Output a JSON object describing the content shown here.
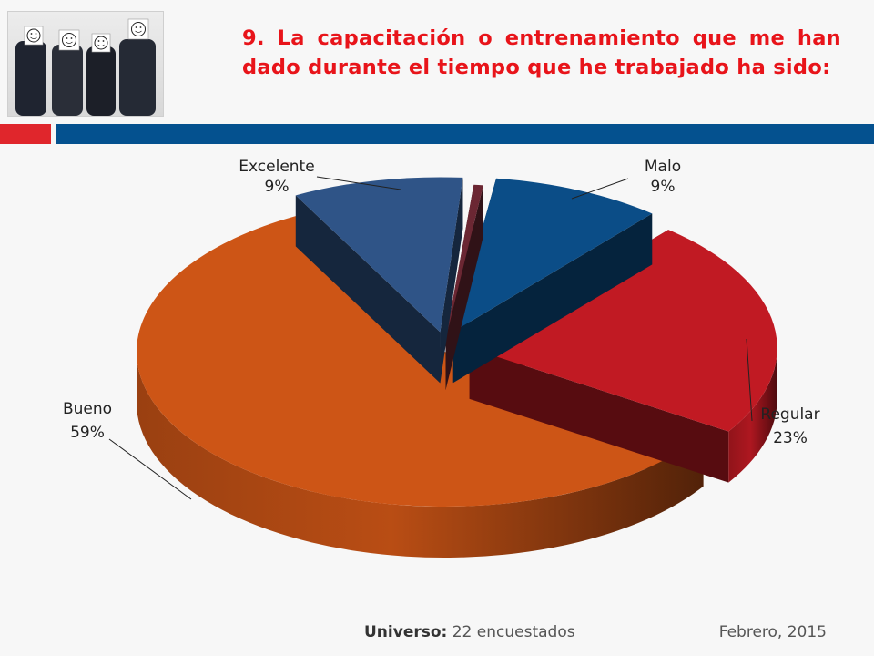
{
  "slide": {
    "title": "9. La capacitación o entrenamiento que me han dado durante el tiempo que he trabajado ha sido:",
    "footer": {
      "universe_label": "Universo:",
      "universe_value": "22 encuestados",
      "date": "Febrero, 2015"
    },
    "photo_icon": "smiley-face-icon"
  },
  "chart_data": {
    "type": "pie",
    "exploded": true,
    "three_d": true,
    "slices": [
      {
        "name": "Excelente",
        "value": 9,
        "label": "9%",
        "color": "#2f5487"
      },
      {
        "name": "Malo",
        "value": 9,
        "label": "9%",
        "color": "#0b4d87"
      },
      {
        "name": "Regular",
        "value": 23,
        "label": "23%",
        "color": "#c11a23"
      },
      {
        "name": "Bueno",
        "value": 59,
        "label": "59%",
        "color": "#cd5516"
      },
      {
        "name": "",
        "value": 0.5,
        "label": "",
        "color": "#6b2733"
      }
    ]
  }
}
